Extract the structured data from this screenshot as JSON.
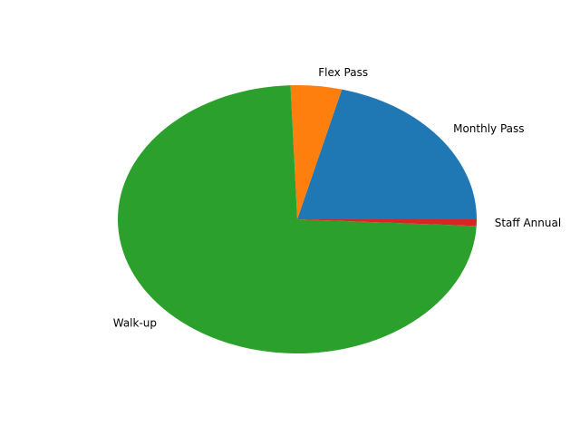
{
  "chart_data": {
    "type": "pie",
    "title": "",
    "startangle": 0,
    "direction": "counterclockwise",
    "slices": [
      {
        "label": "Monthly Pass",
        "value": 21.0,
        "color": "#1f77b4"
      },
      {
        "label": "Flex Pass",
        "value": 4.6,
        "color": "#ff7f0e"
      },
      {
        "label": "Walk-up",
        "value": 73.6,
        "color": "#2ca02c"
      },
      {
        "label": "Staff Annual",
        "value": 0.8,
        "color": "#d62728"
      }
    ]
  }
}
